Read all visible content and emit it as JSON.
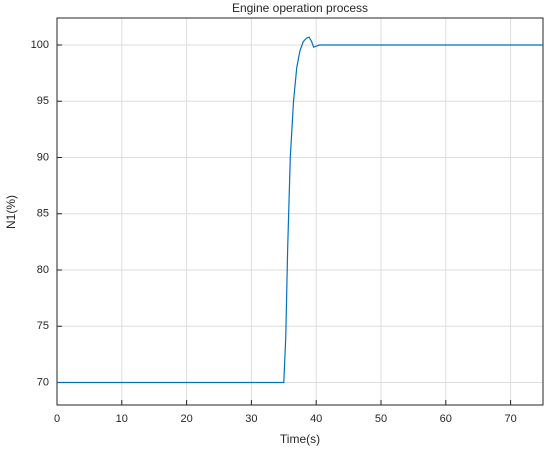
{
  "chart_data": {
    "type": "line",
    "title": "Engine operation process",
    "xlabel": "Time(s)",
    "ylabel": "N1(%)",
    "x": [
      0,
      10,
      20,
      30,
      35,
      35.3,
      35.6,
      36,
      36.5,
      37,
      37.5,
      38,
      38.5,
      38.9,
      39.3,
      39.6,
      40,
      40.5,
      41,
      50,
      60,
      75
    ],
    "series": [
      {
        "name": "N1",
        "color": "#0072bd",
        "values": [
          70,
          70,
          70,
          70,
          70,
          74,
          82,
          90,
          95,
          98,
          99.5,
          100.3,
          100.6,
          100.7,
          100.3,
          99.8,
          99.9,
          100,
          100,
          100,
          100,
          100
        ]
      }
    ],
    "xlim": [
      0,
      75
    ],
    "xticks": [
      0,
      10,
      20,
      30,
      40,
      50,
      60,
      70
    ],
    "ylim": [
      68,
      102.4
    ],
    "yticks": [
      70,
      75,
      80,
      85,
      90,
      95,
      100
    ],
    "grid": true
  }
}
